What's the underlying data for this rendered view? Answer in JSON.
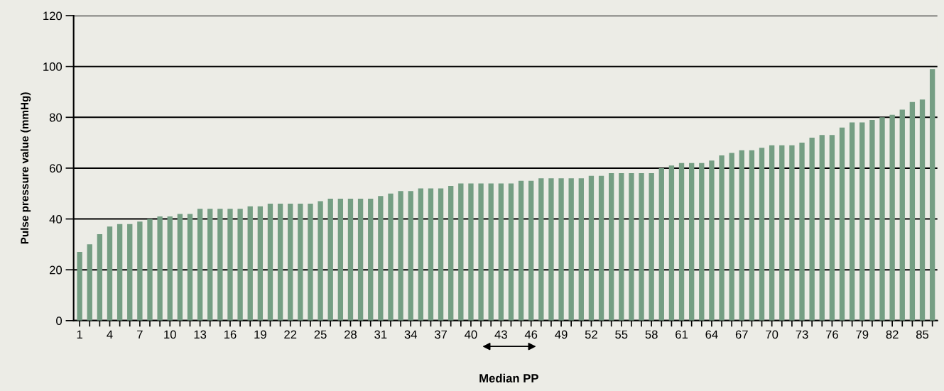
{
  "chart_data": {
    "type": "bar",
    "ylabel": "Pulse pressure value (mmHg)",
    "categories": [
      "1",
      null,
      null,
      "4",
      null,
      null,
      "7",
      null,
      null,
      "10",
      null,
      null,
      "13",
      null,
      null,
      "16",
      null,
      null,
      "19",
      null,
      null,
      "22",
      null,
      null,
      "25",
      null,
      null,
      "28",
      null,
      null,
      "31",
      null,
      null,
      "34",
      null,
      null,
      "37",
      null,
      null,
      "40",
      null,
      null,
      "43",
      null,
      null,
      "46",
      null,
      null,
      "49",
      null,
      null,
      "52",
      null,
      null,
      "55",
      null,
      null,
      "58",
      null,
      null,
      "61",
      null,
      null,
      "64",
      null,
      null,
      "67",
      null,
      null,
      "70",
      null,
      null,
      "73",
      null,
      null,
      "76",
      null,
      null,
      "79",
      null,
      null,
      "82",
      null,
      null,
      "85",
      null
    ],
    "values": [
      27,
      30,
      34,
      37,
      38,
      38,
      39,
      40,
      41,
      41,
      42,
      42,
      44,
      44,
      44,
      44,
      44,
      45,
      45,
      46,
      46,
      46,
      46,
      46,
      47,
      48,
      48,
      48,
      48,
      48,
      49,
      50,
      51,
      51,
      52,
      52,
      52,
      53,
      54,
      54,
      54,
      54,
      54,
      54,
      55,
      55,
      56,
      56,
      56,
      56,
      56,
      57,
      57,
      58,
      58,
      58,
      58,
      58,
      60,
      61,
      62,
      62,
      62,
      63,
      65,
      66,
      67,
      67,
      68,
      69,
      69,
      69,
      70,
      72,
      73,
      73,
      76,
      78,
      78,
      79,
      80,
      81,
      83,
      86,
      87,
      99
    ],
    "color": "#759e83",
    "ylim": [
      0,
      120
    ],
    "yticks": [
      0,
      20,
      40,
      60,
      80,
      100,
      120
    ],
    "grid": "y",
    "annotations": [
      "Median PP"
    ]
  }
}
